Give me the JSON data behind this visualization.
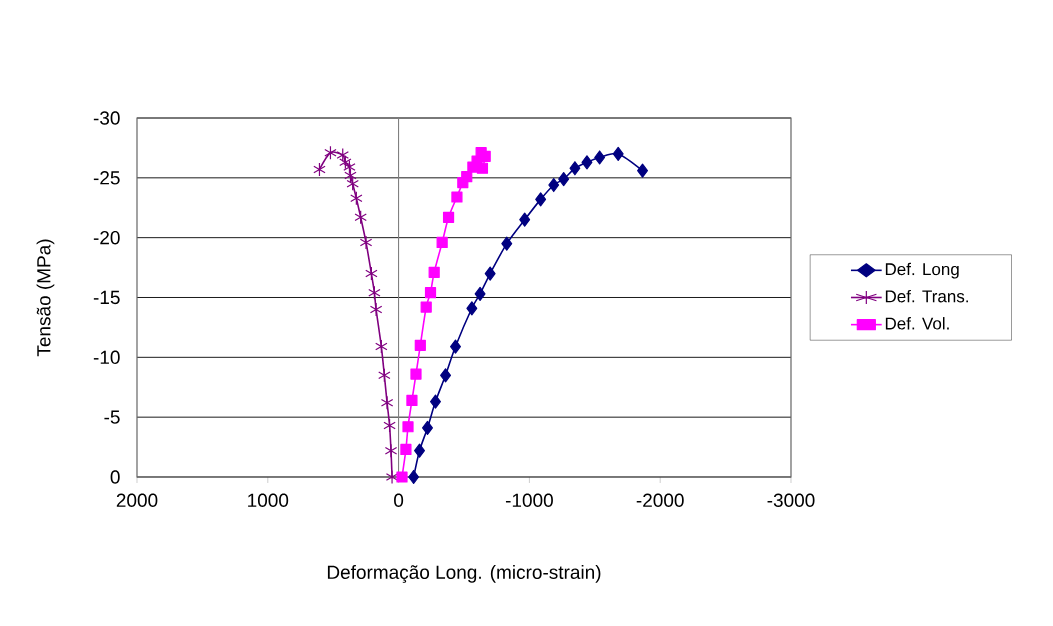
{
  "chart_data": {
    "type": "line",
    "xlabel": "Deformação Long. (micro-strain)",
    "ylabel": "Tensão (MPa)",
    "xlim": [
      2000,
      -3000
    ],
    "xticks": [
      2000,
      1000,
      0,
      -1000,
      -2000,
      -3000
    ],
    "ylim": [
      0,
      -30
    ],
    "yticks": [
      0,
      -5,
      -10,
      -15,
      -20,
      -25,
      -30
    ],
    "grid": "y",
    "legend": "right",
    "line_style": "solid",
    "ref_lines": [
      {
        "axis": "x",
        "value": 0,
        "color": "#808080"
      }
    ],
    "series": [
      {
        "name": "Def. Long",
        "color": "#000080",
        "marker": "diamond",
        "x": [
          -115,
          -160,
          -221,
          -282,
          -359,
          -435,
          -560,
          -623,
          -700,
          -827,
          -964,
          -1086,
          -1186,
          -1262,
          -1348,
          -1440,
          -1537,
          -1679,
          -1865
        ],
        "values": [
          0,
          -2.2,
          -4.1,
          -6.3,
          -8.5,
          -10.9,
          -14.1,
          -15.3,
          -17.0,
          -19.5,
          -21.5,
          -23.2,
          -24.4,
          -24.9,
          -25.8,
          -26.3,
          -26.7,
          -27.0,
          -25.6
        ]
      },
      {
        "name": "Def. Trans.",
        "color": "#800080",
        "marker": "cross",
        "x": [
          50,
          58,
          69,
          88,
          109,
          132,
          172,
          185,
          208,
          249,
          290,
          323,
          351,
          368,
          376,
          407,
          427,
          521,
          605
        ],
        "values": [
          0,
          -2.2,
          -4.3,
          -6.2,
          -8.5,
          -10.9,
          -14.0,
          -15.4,
          -17.0,
          -19.6,
          -21.7,
          -23.3,
          -24.5,
          -25.2,
          -25.9,
          -26.3,
          -26.9,
          -27.1,
          -25.7
        ]
      },
      {
        "name": "Def. Vol.",
        "color": "#ff00ff",
        "marker": "square",
        "x": [
          -26,
          -56,
          -72,
          -102,
          -133,
          -166,
          -211,
          -244,
          -272,
          -333,
          -382,
          -446,
          -491,
          -521,
          -568,
          -600,
          -631,
          -662,
          -641
        ],
        "values": [
          0,
          -2.3,
          -4.2,
          -6.4,
          -8.6,
          -11.0,
          -14.2,
          -15.4,
          -17.1,
          -19.6,
          -21.7,
          -23.4,
          -24.6,
          -25.1,
          -25.9,
          -26.4,
          -27.1,
          -26.8,
          -25.8
        ]
      }
    ]
  }
}
